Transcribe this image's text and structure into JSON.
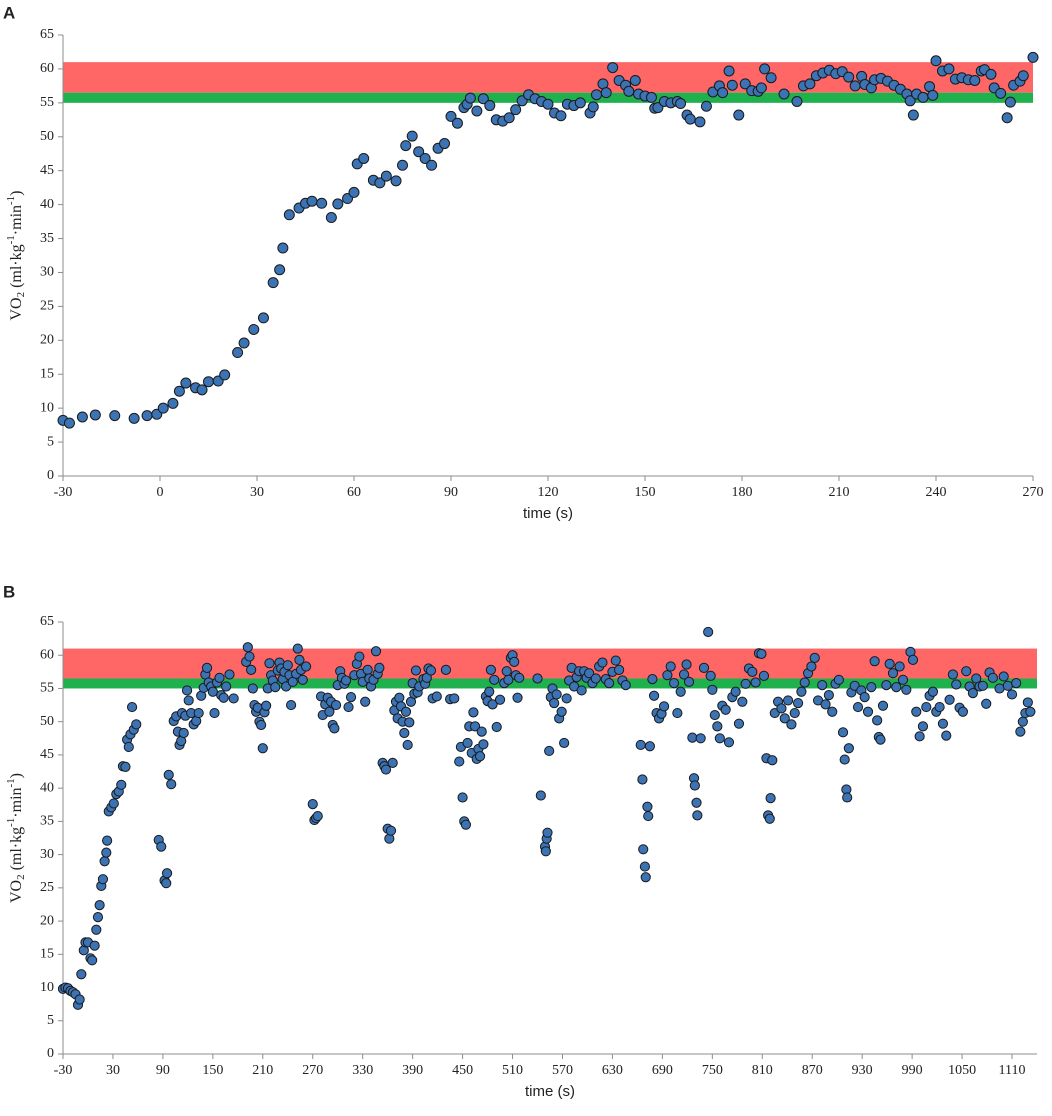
{
  "chart_data": [
    {
      "type": "scatter",
      "panel_label": "A",
      "xlabel": "time (s)",
      "ylabel": [
        "VO",
        "2",
        " (ml·kg",
        "-1",
        "·min",
        "-1",
        ")"
      ],
      "color": "#3b73b4",
      "edge_color": "#1a1a1a",
      "xlim": [
        -30,
        270
      ],
      "xticks": [
        -30,
        0,
        30,
        60,
        90,
        120,
        150,
        180,
        210,
        240,
        270
      ],
      "ylim": [
        0,
        65
      ],
      "yticks": [
        0,
        5,
        10,
        15,
        20,
        25,
        30,
        35,
        40,
        45,
        50,
        55,
        60,
        65
      ],
      "bands": [
        {
          "range": [
            56.5,
            61
          ],
          "color": "#ff6666"
        },
        {
          "range": [
            55,
            56.5
          ],
          "color": "#1fb14e"
        }
      ],
      "x": [
        -30,
        -28,
        -24,
        -20,
        -14,
        -8,
        -4,
        -1,
        1,
        4,
        6,
        8,
        11,
        13,
        15,
        18,
        20,
        24,
        26,
        29,
        32,
        35,
        37,
        38,
        40,
        43,
        45,
        47,
        50,
        53,
        55,
        58,
        60,
        61,
        63,
        66,
        68,
        70,
        73,
        75,
        76,
        78,
        80,
        82,
        84,
        86,
        88,
        90,
        92,
        94,
        95,
        96,
        98,
        100,
        102,
        104,
        106,
        108,
        110,
        112,
        114,
        116,
        118,
        120,
        122,
        124,
        126,
        128,
        130,
        133,
        134,
        135,
        137,
        138,
        140,
        142,
        144,
        145,
        147,
        148,
        150,
        152,
        153,
        154,
        156,
        158,
        160,
        161,
        163,
        164,
        167,
        169,
        171,
        173,
        174,
        176,
        177,
        179,
        181,
        183,
        185,
        186,
        187,
        189,
        193,
        197,
        199,
        201,
        203,
        205,
        207,
        209,
        211,
        213,
        215,
        217,
        218,
        220,
        221,
        223,
        225,
        227,
        229,
        231,
        232,
        233,
        234,
        236,
        238,
        239,
        240,
        242,
        244,
        246,
        248,
        250,
        252,
        254,
        255,
        257,
        258,
        260,
        262,
        263,
        264,
        266,
        267,
        270
      ],
      "values": [
        8.2,
        7.8,
        8.7,
        9,
        8.9,
        8.5,
        8.9,
        9.1,
        10,
        10.7,
        12.5,
        13.7,
        13,
        12.7,
        13.9,
        14,
        14.9,
        18.2,
        19.6,
        21.6,
        23.3,
        28.5,
        30.4,
        33.6,
        38.5,
        39.5,
        40.2,
        40.5,
        40.2,
        38.1,
        40.1,
        40.9,
        41.8,
        46,
        46.8,
        43.6,
        43.2,
        44.2,
        43.5,
        45.8,
        48.7,
        50.1,
        47.8,
        46.8,
        45.8,
        48.3,
        49,
        53,
        52,
        54.3,
        54.8,
        55.7,
        53.8,
        55.6,
        54.6,
        52.5,
        52.3,
        52.8,
        54,
        55.3,
        56.2,
        55.6,
        55.2,
        54.8,
        53.5,
        53.1,
        54.8,
        54.6,
        55,
        53.5,
        54.4,
        56.2,
        57.8,
        56.5,
        60.2,
        58.3,
        57.6,
        56.7,
        58.3,
        56.3,
        56,
        55.8,
        54.2,
        54.3,
        55.2,
        55,
        55.2,
        54.9,
        53.2,
        52.6,
        52.2,
        54.5,
        56.6,
        57.5,
        56.5,
        59.7,
        57.6,
        53.2,
        57.8,
        56.8,
        56.7,
        57.2,
        60,
        58.7,
        56.3,
        55.2,
        57.5,
        57.8,
        59,
        59.4,
        59.8,
        59.3,
        59.6,
        58.8,
        57.5,
        58.9,
        57.7,
        57.2,
        58.4,
        58.6,
        58.2,
        57.6,
        57,
        56.3,
        55.3,
        53.2,
        56.3,
        55.8,
        57.4,
        56.1,
        61.2,
        59.7,
        60,
        58.5,
        58.7,
        58.4,
        58.3,
        59.7,
        59.9,
        59.2,
        57.2,
        56.4,
        52.8,
        55.1,
        57.6,
        58.2,
        59,
        61.7
      ]
    },
    {
      "type": "scatter",
      "panel_label": "B",
      "xlabel": "time (s)",
      "ylabel": [
        "VO",
        "2",
        " (ml·kg",
        "-1",
        "·min",
        "-1",
        ")"
      ],
      "color": "#3b73b4",
      "edge_color": "#1a1a1a",
      "xlim": [
        -30,
        1140
      ],
      "xticks": [
        -30,
        30,
        90,
        150,
        210,
        270,
        330,
        390,
        450,
        510,
        570,
        630,
        690,
        750,
        810,
        870,
        930,
        990,
        1050,
        1110
      ],
      "ylim": [
        0,
        65
      ],
      "yticks": [
        0,
        5,
        10,
        15,
        20,
        25,
        30,
        35,
        40,
        45,
        50,
        55,
        60,
        65
      ],
      "bands": [
        {
          "range": [
            56.5,
            61
          ],
          "color": "#ff6666"
        },
        {
          "range": [
            55,
            56.5
          ],
          "color": "#1fb14e"
        }
      ],
      "x": [
        -30,
        -27,
        -24,
        -21,
        -18,
        -15,
        -12,
        -10,
        -8,
        -5,
        -3,
        0,
        3,
        5,
        8,
        10,
        12,
        14,
        16,
        18,
        20,
        22,
        23,
        25,
        28,
        31,
        34,
        37,
        40,
        42,
        45,
        47,
        49,
        51,
        53,
        55,
        58,
        85,
        88,
        92,
        94,
        95,
        97,
        100,
        103,
        106,
        108,
        110,
        112,
        113,
        115,
        117,
        119,
        121,
        124,
        127,
        130,
        133,
        136,
        139,
        141,
        143,
        145,
        148,
        150,
        152,
        155,
        158,
        160,
        163,
        166,
        170,
        175,
        190,
        192,
        194,
        196,
        198,
        200,
        202,
        204,
        206,
        208,
        210,
        212,
        214,
        216,
        218,
        220,
        222,
        225,
        228,
        230,
        232,
        234,
        236,
        238,
        240,
        242,
        244,
        246,
        250,
        252,
        254,
        256,
        258,
        262,
        270,
        272,
        274,
        276,
        280,
        282,
        285,
        288,
        290,
        292,
        294,
        296,
        298,
        300,
        303,
        305,
        308,
        310,
        313,
        316,
        320,
        323,
        326,
        328,
        330,
        333,
        336,
        338,
        340,
        343,
        346,
        348,
        350,
        354,
        356,
        358,
        360,
        362,
        364,
        366,
        368,
        370,
        372,
        374,
        376,
        378,
        380,
        382,
        384,
        386,
        388,
        390,
        392,
        394,
        396,
        398,
        403,
        405,
        407,
        409,
        412,
        414,
        419,
        430,
        435,
        440,
        446,
        448,
        450,
        452,
        454,
        456,
        458,
        461,
        463,
        465,
        467,
        469,
        471,
        473,
        475,
        478,
        480,
        482,
        484,
        486,
        488,
        491,
        495,
        500,
        503,
        505,
        508,
        510,
        512,
        514,
        516,
        518,
        540,
        544,
        549,
        550,
        551,
        552,
        554,
        556,
        558,
        560,
        563,
        566,
        569,
        572,
        575,
        578,
        581,
        584,
        587,
        590,
        593,
        596,
        599,
        602,
        606,
        610,
        614,
        618,
        622,
        626,
        630,
        634,
        638,
        642,
        646,
        664,
        666,
        667,
        669,
        670,
        672,
        673,
        675,
        678,
        680,
        683,
        686,
        689,
        692,
        696,
        700,
        704,
        708,
        712,
        716,
        719,
        722,
        726,
        728,
        729,
        731,
        732,
        736,
        740,
        745,
        748,
        750,
        753,
        756,
        759,
        762,
        766,
        770,
        774,
        778,
        782,
        786,
        790,
        794,
        798,
        802,
        806,
        809,
        812,
        815,
        817,
        819,
        820,
        822,
        825,
        829,
        833,
        837,
        841,
        845,
        849,
        853,
        857,
        861,
        865,
        869,
        873,
        877,
        882,
        886,
        890,
        894,
        898,
        902,
        907,
        909,
        911,
        912,
        914,
        917,
        921,
        925,
        929,
        933,
        937,
        941,
        945,
        948,
        950,
        952,
        955,
        959,
        963,
        967,
        971,
        975,
        979,
        983,
        988,
        991,
        995,
        999,
        1003,
        1007,
        1011,
        1015,
        1019,
        1023,
        1027,
        1031,
        1035,
        1039,
        1043,
        1047,
        1051,
        1055,
        1059,
        1063,
        1067,
        1071,
        1075,
        1079,
        1083,
        1087,
        1095,
        1100,
        1105,
        1110,
        1115,
        1120,
        1123,
        1126,
        1129,
        1132
      ],
      "values": [
        9.8,
        10,
        9.9,
        9.5,
        9.3,
        9,
        7.4,
        8.2,
        12,
        15.6,
        16.8,
        16.8,
        14.4,
        14.1,
        16.3,
        18.7,
        20.6,
        22.4,
        25.3,
        26.3,
        29,
        30.3,
        32.1,
        36.5,
        37.1,
        37.7,
        39.1,
        39.5,
        40.5,
        43.3,
        43.2,
        47.3,
        46.2,
        48.1,
        52.2,
        48.8,
        49.6,
        32.2,
        31.2,
        26.1,
        25.7,
        27.2,
        42,
        40.6,
        50.1,
        50.8,
        48.5,
        46.5,
        47.1,
        51.3,
        48.3,
        50.9,
        54.7,
        53.2,
        51.3,
        49.6,
        50.1,
        51.3,
        53.9,
        55.1,
        57.1,
        58.1,
        55.9,
        55.3,
        54.5,
        51.3,
        55.9,
        56.6,
        54,
        53.6,
        55.3,
        57.1,
        53.5,
        59,
        61.2,
        59.8,
        57.8,
        55,
        52.5,
        51.5,
        52.1,
        50,
        49.5,
        46,
        51.4,
        52.4,
        55,
        58.8,
        57,
        56.2,
        55.2,
        57.7,
        58.9,
        58,
        56.4,
        57.5,
        55.3,
        58.5,
        57,
        52.5,
        56,
        57.2,
        61,
        59.3,
        57.8,
        56.3,
        58.3,
        37.6,
        35.2,
        35.5,
        35.8,
        53.8,
        51,
        52.6,
        53.6,
        51.5,
        53,
        49.5,
        49,
        52.5,
        55.5,
        57.6,
        56.6,
        55.7,
        56.2,
        52.2,
        53.7,
        57,
        58.7,
        59.8,
        57.2,
        56,
        53,
        57.8,
        56.5,
        55.3,
        56.3,
        60.6,
        57.2,
        58.1,
        43.8,
        43.3,
        42.8,
        33.9,
        32.4,
        33.6,
        43.8,
        51.7,
        53,
        50.5,
        53.6,
        52.3,
        50,
        48.3,
        51.5,
        46.5,
        49.9,
        53,
        55.8,
        54.2,
        57.7,
        54.4,
        55.3,
        56.4,
        55.7,
        56.6,
        58,
        57.7,
        53.5,
        53.8,
        57.8,
        53.4,
        53.5,
        44,
        46.2,
        38.6,
        35,
        34.5,
        46.8,
        49.3,
        45.3,
        51.4,
        49.3,
        44.4,
        45.9,
        44.8,
        48.5,
        46.6,
        53.8,
        53.1,
        54.5,
        57.8,
        52.6,
        56.3,
        49.2,
        53.3,
        55.8,
        57.6,
        56.3,
        59.6,
        60,
        59,
        57,
        53.6,
        56.6,
        56.5,
        38.9,
        31.2,
        30.5,
        32.4,
        33.3,
        45.6,
        53.7,
        55,
        52.8,
        54.1,
        50.5,
        51.5,
        46.8,
        53.5,
        56.2,
        58.1,
        55.3,
        56.7,
        57.6,
        54.7,
        57.6,
        56.6,
        57.3,
        55.8,
        56.5,
        58.3,
        58.9,
        56.4,
        55.8,
        57.5,
        59.2,
        57.8,
        56.2,
        55.5,
        46.5,
        41.3,
        30.8,
        28.2,
        26.6,
        37.2,
        35.8,
        46.3,
        56.4,
        53.9,
        51.3,
        50.5,
        51.2,
        52.3,
        57,
        58.3,
        55.8,
        51.3,
        54.5,
        57.1,
        58.6,
        56,
        47.6,
        41.5,
        40.4,
        37.8,
        35.9,
        47.5,
        58.1,
        63.5,
        56.9,
        54.8,
        51,
        49.3,
        47.5,
        52.4,
        51.8,
        46.9,
        53.7,
        54.5,
        49.7,
        53,
        55.7,
        58,
        57.5,
        55.9,
        60.3,
        60.2,
        56.9,
        44.5,
        35.9,
        35.4,
        38.5,
        44.2,
        51.3,
        53,
        52,
        50.5,
        53.2,
        49.6,
        51.3,
        52.8,
        54.5,
        55.9,
        57.3,
        58.3,
        59.6,
        53.2,
        55.5,
        52.6,
        54,
        51.5,
        55.7,
        56.3,
        48.4,
        44.3,
        39.8,
        38.6,
        46,
        54.4,
        55.4,
        52.2,
        54.7,
        53.7,
        51.5,
        55.2,
        59.1,
        50.2,
        47.7,
        47.3,
        52.4,
        55.5,
        58.7,
        57.3,
        55.2,
        58.3,
        56.3,
        54.8,
        60.5,
        59.3,
        51.5,
        47.8,
        49.3,
        52.2,
        53.9,
        54.5,
        51.5,
        52.2,
        49.7,
        47.9,
        53.3,
        57.1,
        55.6,
        52.1,
        51.5,
        57.6,
        55.3,
        54.3,
        56.5,
        55.3,
        55.4,
        52.7,
        57.4,
        56.6,
        55,
        56.8,
        55.4,
        54.1,
        55.8,
        48.5,
        50,
        51.3,
        52.9,
        51.5
      ]
    }
  ]
}
